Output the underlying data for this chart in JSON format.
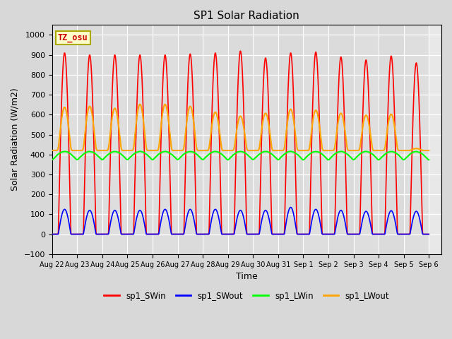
{
  "title": "SP1 Solar Radiation",
  "xlabel": "Time",
  "ylabel": "Solar Radiation (W/m2)",
  "ylim": [
    -100,
    1050
  ],
  "background_color": "#d8d8d8",
  "plot_bg_color": "#e8e8e8",
  "colors": {
    "sp1_SWin": "red",
    "sp1_SWout": "blue",
    "sp1_LWin": "#00ff00",
    "sp1_LWout": "orange"
  },
  "tick_labels": [
    "Aug 22",
    "Aug 23",
    "Aug 24",
    "Aug 25",
    "Aug 26",
    "Aug 27",
    "Aug 28",
    "Aug 29",
    "Aug 30",
    "Aug 31",
    "Sep 1",
    "Sep 2",
    "Sep 3",
    "Sep 4",
    "Sep 5",
    "Sep 6"
  ],
  "yticks": [
    -100,
    0,
    100,
    200,
    300,
    400,
    500,
    600,
    700,
    800,
    900,
    1000
  ],
  "n_days": 15,
  "SWin_peaks": [
    910,
    900,
    900,
    900,
    900,
    905,
    910,
    920,
    885,
    910,
    915,
    890,
    875,
    895,
    860
  ],
  "SWout_peaks": [
    125,
    120,
    120,
    120,
    125,
    125,
    125,
    120,
    120,
    135,
    125,
    120,
    115,
    118,
    115
  ],
  "LWin_night": 370,
  "LWin_day_peak": 415,
  "LWout_night": 420,
  "LWout_day_peaks": [
    640,
    645,
    635,
    655,
    655,
    645,
    615,
    595,
    610,
    630,
    625,
    610,
    600,
    605,
    430
  ]
}
